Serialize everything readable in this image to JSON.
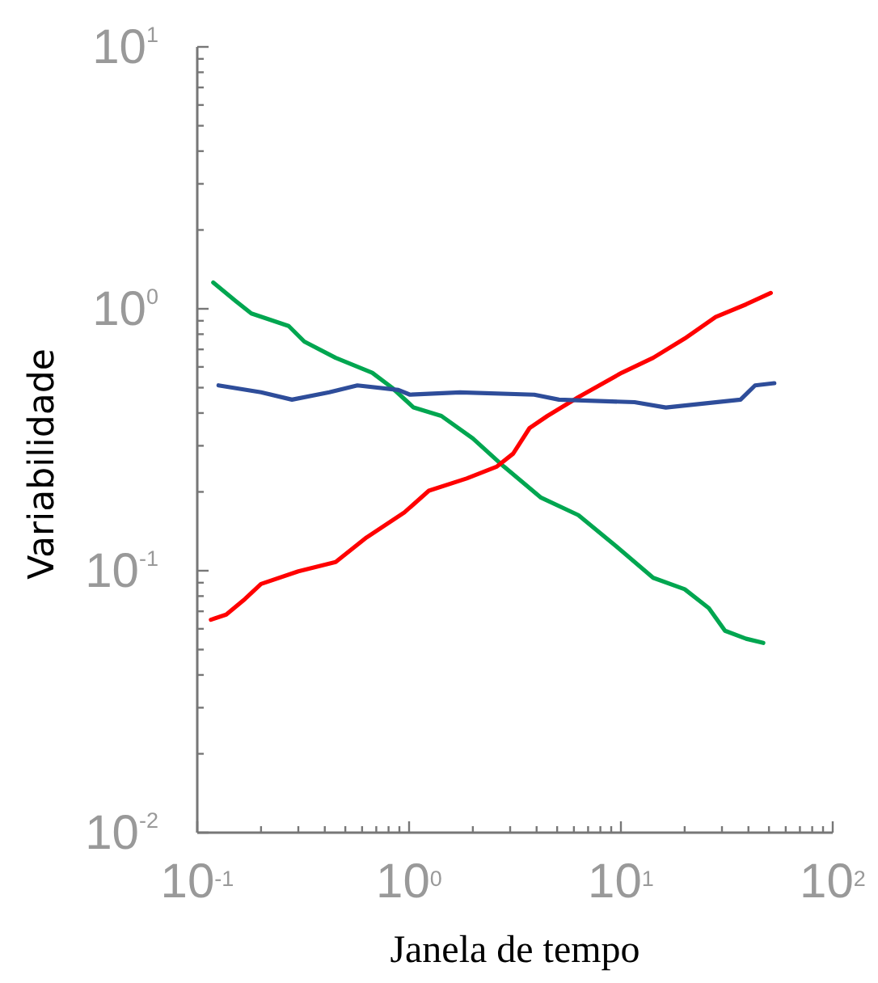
{
  "chart_data": {
    "type": "line",
    "xlabel": "Janela de tempo",
    "ylabel": "Variabilidade",
    "log": "xy",
    "grid": false,
    "line_style": "solid",
    "xlim": [
      0.1,
      100
    ],
    "ylim": [
      0.01,
      10
    ],
    "xticks": [
      {
        "value": 0.1,
        "label": "10$^{-1}$"
      },
      {
        "value": 0.2,
        "label": null
      },
      {
        "value": 0.3,
        "label": null
      },
      {
        "value": 0.4,
        "label": null
      },
      {
        "value": 0.5,
        "label": null
      },
      {
        "value": 0.6,
        "label": null
      },
      {
        "value": 0.7,
        "label": null
      },
      {
        "value": 0.8,
        "label": null
      },
      {
        "value": 0.9,
        "label": null
      },
      {
        "value": 1,
        "label": "10$^{0}$"
      },
      {
        "value": 2,
        "label": null
      },
      {
        "value": 3,
        "label": null
      },
      {
        "value": 4,
        "label": null
      },
      {
        "value": 5,
        "label": null
      },
      {
        "value": 6,
        "label": null
      },
      {
        "value": 7,
        "label": null
      },
      {
        "value": 8,
        "label": null
      },
      {
        "value": 9,
        "label": null
      },
      {
        "value": 10,
        "label": "10$^{1}$"
      },
      {
        "value": 20,
        "label": null
      },
      {
        "value": 30,
        "label": null
      },
      {
        "value": 40,
        "label": null
      },
      {
        "value": 50,
        "label": null
      },
      {
        "value": 60,
        "label": null
      },
      {
        "value": 70,
        "label": null
      },
      {
        "value": 80,
        "label": null
      },
      {
        "value": 90,
        "label": null
      },
      {
        "value": 100,
        "label": "10$^{2}$"
      }
    ],
    "yticks": [
      {
        "value": 0.01,
        "label": "10$^{-2}$"
      },
      {
        "value": 0.02,
        "label": null
      },
      {
        "value": 0.03,
        "label": null
      },
      {
        "value": 0.04,
        "label": null
      },
      {
        "value": 0.05,
        "label": null
      },
      {
        "value": 0.06,
        "label": null
      },
      {
        "value": 0.07,
        "label": null
      },
      {
        "value": 0.08,
        "label": null
      },
      {
        "value": 0.09,
        "label": null
      },
      {
        "value": 0.1,
        "label": "10$^{-1}$"
      },
      {
        "value": 0.2,
        "label": null
      },
      {
        "value": 0.3,
        "label": null
      },
      {
        "value": 0.4,
        "label": null
      },
      {
        "value": 0.5,
        "label": null
      },
      {
        "value": 0.6,
        "label": null
      },
      {
        "value": 0.7,
        "label": null
      },
      {
        "value": 0.8,
        "label": null
      },
      {
        "value": 0.9,
        "label": null
      },
      {
        "value": 1,
        "label": "10$^{0}$"
      },
      {
        "value": 2,
        "label": null
      },
      {
        "value": 3,
        "label": null
      },
      {
        "value": 4,
        "label": null
      },
      {
        "value": 5,
        "label": null
      },
      {
        "value": 6,
        "label": null
      },
      {
        "value": 7,
        "label": null
      },
      {
        "value": 8,
        "label": null
      },
      {
        "value": 9,
        "label": null
      },
      {
        "value": 10,
        "label": "10$^{1}$"
      }
    ],
    "series": [
      {
        "color": "#00a650",
        "x": [
          0.119,
          0.152,
          0.18,
          0.27,
          0.32,
          0.45,
          0.67,
          0.83,
          1.05,
          1.42,
          2.0,
          2.8,
          4.2,
          6.3,
          9.5,
          14.2,
          20,
          26,
          31,
          39,
          47
        ],
        "values": [
          1.26,
          1.07,
          0.96,
          0.86,
          0.75,
          0.65,
          0.57,
          0.5,
          0.42,
          0.39,
          0.32,
          0.25,
          0.19,
          0.163,
          0.124,
          0.094,
          0.085,
          0.072,
          0.059,
          0.055,
          0.053
        ]
      },
      {
        "color": "#ff0000",
        "x": [
          0.116,
          0.137,
          0.168,
          0.2,
          0.3,
          0.45,
          0.63,
          0.95,
          1.24,
          1.87,
          2.6,
          3.1,
          3.7,
          4.5,
          6.3,
          10.1,
          14.2,
          20,
          28,
          39,
          51
        ],
        "values": [
          0.065,
          0.068,
          0.078,
          0.089,
          0.0995,
          0.108,
          0.134,
          0.167,
          0.202,
          0.225,
          0.25,
          0.28,
          0.35,
          0.39,
          0.46,
          0.57,
          0.65,
          0.77,
          0.93,
          1.04,
          1.15
        ]
      },
      {
        "color": "#2e4d9a",
        "x": [
          0.126,
          0.2,
          0.28,
          0.42,
          0.57,
          0.89,
          1.01,
          1.74,
          3.9,
          5.1,
          11.6,
          16.3,
          36.7,
          43,
          53
        ],
        "values": [
          0.51,
          0.48,
          0.45,
          0.48,
          0.51,
          0.49,
          0.47,
          0.48,
          0.47,
          0.45,
          0.44,
          0.42,
          0.45,
          0.51,
          0.52
        ]
      }
    ]
  }
}
